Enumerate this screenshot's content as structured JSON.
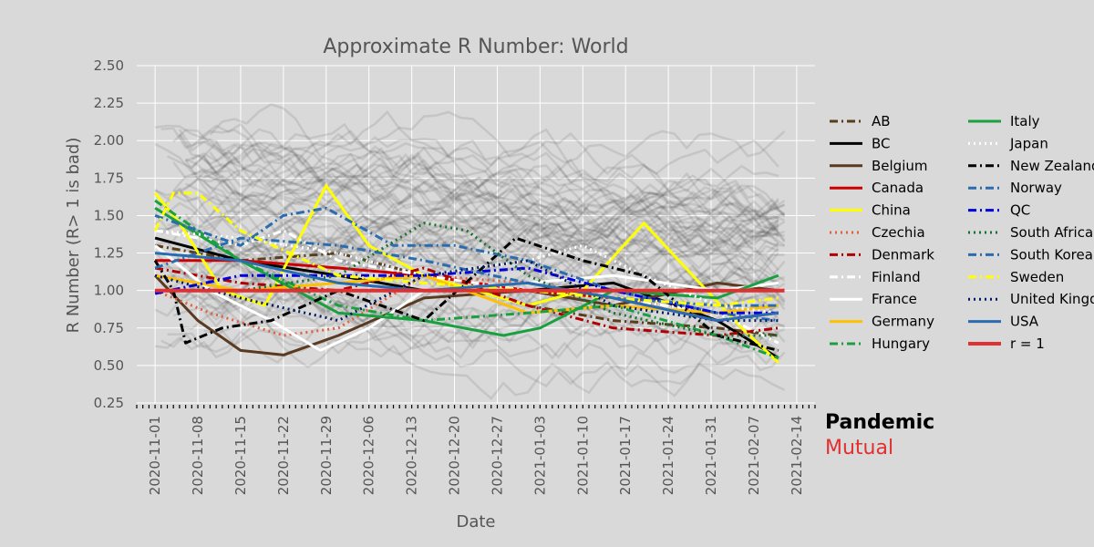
{
  "chart_data": {
    "type": "line",
    "title": "Approximate R Number: World",
    "xlabel": "Date",
    "ylabel": "R Number (R> 1 is bad)",
    "ylim": [
      0.25,
      2.5
    ],
    "xlim": [
      "2020-10-29",
      "2021-02-17"
    ],
    "yticks": [
      "0.25",
      "0.50",
      "0.75",
      "1.00",
      "1.25",
      "1.50",
      "1.75",
      "2.00",
      "2.25",
      "2.50"
    ],
    "xticks": [
      "2020-11-01",
      "2020-11-08",
      "2020-11-15",
      "2020-11-22",
      "2020-11-29",
      "2020-12-06",
      "2020-12-13",
      "2020-12-20",
      "2020-12-27",
      "2021-01-03",
      "2021-01-10",
      "2021-01-17",
      "2021-01-24",
      "2021-01-31",
      "2021-02-07",
      "2021-02-14"
    ],
    "grid": true,
    "legend_position": "right",
    "background_series": "many unlabeled grey world-country lines",
    "series": [
      {
        "name": "AB",
        "color": "#5a3e1b",
        "dash": "dashdot",
        "x": [
          "2020-11-01",
          "2020-11-15",
          "2020-12-01",
          "2020-12-15",
          "2021-01-01",
          "2021-01-15",
          "2021-02-01",
          "2021-02-11"
        ],
        "values": [
          1.3,
          1.2,
          1.25,
          1.1,
          0.9,
          0.8,
          0.75,
          0.7
        ]
      },
      {
        "name": "BC",
        "color": "#000000",
        "dash": "solid",
        "x": [
          "2020-11-01",
          "2020-11-15",
          "2020-12-01",
          "2020-12-15",
          "2021-01-01",
          "2021-01-15",
          "2021-02-01",
          "2021-02-11"
        ],
        "values": [
          1.35,
          1.2,
          1.1,
          1.0,
          1.0,
          1.05,
          0.8,
          0.55
        ]
      },
      {
        "name": "Belgium",
        "color": "#5a3a20",
        "dash": "solid",
        "x": [
          "2020-11-01",
          "2020-11-08",
          "2020-11-15",
          "2020-11-22",
          "2020-12-01",
          "2020-12-15",
          "2021-01-01",
          "2021-01-15",
          "2021-02-01",
          "2021-02-11"
        ],
        "values": [
          1.1,
          0.8,
          0.6,
          0.57,
          0.7,
          0.95,
          1.0,
          0.9,
          1.05,
          1.0
        ]
      },
      {
        "name": "Canada",
        "color": "#cc0000",
        "dash": "solid",
        "x": [
          "2020-11-01",
          "2020-11-15",
          "2020-12-01",
          "2020-12-15",
          "2021-01-01",
          "2021-01-15",
          "2021-02-01",
          "2021-02-11"
        ],
        "values": [
          1.2,
          1.2,
          1.15,
          1.1,
          1.0,
          0.95,
          0.8,
          0.85
        ]
      },
      {
        "name": "China",
        "color": "#ffff00",
        "dash": "solid",
        "x": [
          "2020-11-01",
          "2020-11-05",
          "2020-11-12",
          "2020-11-19",
          "2020-11-29",
          "2020-12-06",
          "2020-12-15",
          "2021-01-01",
          "2021-01-10",
          "2021-01-20",
          "2021-01-28",
          "2021-02-05",
          "2021-02-11"
        ],
        "values": [
          1.65,
          1.45,
          1.0,
          0.9,
          1.7,
          1.3,
          1.1,
          0.9,
          1.0,
          1.45,
          1.1,
          0.75,
          0.52
        ]
      },
      {
        "name": "Czechia",
        "color": "#e06040",
        "dash": "dot",
        "x": [
          "2020-11-01",
          "2020-11-10",
          "2020-11-22",
          "2020-12-01",
          "2020-12-15",
          "2021-01-01",
          "2021-01-15",
          "2021-02-01",
          "2021-02-11"
        ],
        "values": [
          1.0,
          0.85,
          0.7,
          0.75,
          1.1,
          1.05,
          0.95,
          0.85,
          0.9
        ]
      },
      {
        "name": "Denmark",
        "color": "#b00000",
        "dash": "dashdot",
        "x": [
          "2020-11-01",
          "2020-11-15",
          "2020-12-01",
          "2020-12-15",
          "2021-01-01",
          "2021-01-15",
          "2021-02-01",
          "2021-02-11"
        ],
        "values": [
          1.15,
          1.05,
          1.0,
          1.15,
          0.9,
          0.75,
          0.7,
          0.75
        ]
      },
      {
        "name": "Finland",
        "color": "#ffffff",
        "dash": "dashdot",
        "x": [
          "2020-11-01",
          "2020-11-15",
          "2020-11-22",
          "2020-12-01",
          "2020-12-15",
          "2021-01-01",
          "2021-01-15",
          "2021-02-01",
          "2021-02-11"
        ],
        "values": [
          1.4,
          1.3,
          1.4,
          1.2,
          1.1,
          1.0,
          0.95,
          0.85,
          0.65
        ]
      },
      {
        "name": "France",
        "color": "#ffffff",
        "dash": "solid",
        "x": [
          "2020-11-01",
          "2020-11-10",
          "2020-11-20",
          "2020-11-28",
          "2020-12-06",
          "2020-12-15",
          "2021-01-01",
          "2021-01-15",
          "2021-02-01",
          "2021-02-11"
        ],
        "values": [
          1.3,
          1.0,
          0.8,
          0.6,
          0.75,
          1.0,
          1.05,
          1.1,
          1.0,
          1.05
        ]
      },
      {
        "name": "Germany",
        "color": "#ffc000",
        "dash": "solid",
        "x": [
          "2020-11-01",
          "2020-11-15",
          "2020-12-01",
          "2020-12-15",
          "2021-01-01",
          "2021-01-15",
          "2021-02-01",
          "2021-02-11"
        ],
        "values": [
          1.1,
          1.0,
          1.05,
          1.1,
          0.85,
          0.9,
          0.85,
          0.9
        ]
      },
      {
        "name": "Hungary",
        "color": "#1aa040",
        "dash": "dashdot",
        "x": [
          "2020-11-01",
          "2020-11-15",
          "2020-12-01",
          "2020-12-15",
          "2021-01-01",
          "2021-01-15",
          "2021-02-01",
          "2021-02-11"
        ],
        "values": [
          1.6,
          1.2,
          0.9,
          0.8,
          0.85,
          0.9,
          0.7,
          0.55
        ]
      },
      {
        "name": "Italy",
        "color": "#1aa040",
        "dash": "solid",
        "x": [
          "2020-11-01",
          "2020-11-15",
          "2020-12-01",
          "2020-12-15",
          "2020-12-28",
          "2021-01-03",
          "2021-01-15",
          "2021-02-01",
          "2021-02-11"
        ],
        "values": [
          1.55,
          1.2,
          0.85,
          0.8,
          0.7,
          0.75,
          1.0,
          0.95,
          1.1
        ]
      },
      {
        "name": "Japan",
        "color": "#ffffff",
        "dash": "dot",
        "x": [
          "2020-11-01",
          "2020-11-15",
          "2020-12-01",
          "2020-12-15",
          "2021-01-01",
          "2021-01-10",
          "2021-01-20",
          "2021-02-01",
          "2021-02-11"
        ],
        "values": [
          1.4,
          1.35,
          1.25,
          1.1,
          1.2,
          1.3,
          1.1,
          0.9,
          0.85
        ]
      },
      {
        "name": "New Zealand",
        "color": "#000000",
        "dash": "dashdot",
        "x": [
          "2020-11-01",
          "2020-11-04",
          "2020-11-06",
          "2020-11-12",
          "2020-11-20",
          "2020-12-01",
          "2020-12-15",
          "2020-12-30",
          "2021-01-10",
          "2021-01-20",
          "2021-02-01",
          "2021-02-11"
        ],
        "values": [
          1.2,
          1.0,
          0.65,
          0.75,
          0.8,
          1.0,
          0.8,
          1.35,
          1.2,
          1.1,
          0.7,
          0.6
        ]
      },
      {
        "name": "Norway",
        "color": "#2a6cb0",
        "dash": "dashdot",
        "x": [
          "2020-11-01",
          "2020-11-15",
          "2020-11-22",
          "2020-11-29",
          "2020-12-10",
          "2020-12-20",
          "2021-01-01",
          "2021-01-15",
          "2021-02-01",
          "2021-02-11"
        ],
        "values": [
          1.5,
          1.3,
          1.5,
          1.55,
          1.3,
          1.3,
          1.2,
          1.0,
          0.85,
          0.8
        ]
      },
      {
        "name": "QC",
        "color": "#0000dd",
        "dash": "dashdot",
        "x": [
          "2020-11-01",
          "2020-11-15",
          "2020-12-01",
          "2020-12-15",
          "2021-01-01",
          "2021-01-15",
          "2021-02-01",
          "2021-02-11"
        ],
        "values": [
          0.98,
          1.1,
          1.1,
          1.1,
          1.15,
          1.0,
          0.85,
          0.85
        ]
      },
      {
        "name": "South Africa",
        "color": "#1a7030",
        "dash": "dot",
        "x": [
          "2020-11-01",
          "2020-11-15",
          "2020-12-01",
          "2020-12-15",
          "2020-12-22",
          "2021-01-01",
          "2021-01-15",
          "2021-02-01",
          "2021-02-11"
        ],
        "values": [
          1.0,
          1.0,
          1.1,
          1.45,
          1.4,
          1.1,
          0.85,
          0.7,
          0.7
        ]
      },
      {
        "name": "South Korea",
        "color": "#2a6cb0",
        "dash": "dashdot",
        "x": [
          "2020-11-01",
          "2020-11-15",
          "2020-12-01",
          "2020-12-15",
          "2021-01-01",
          "2021-01-15",
          "2021-02-01",
          "2021-02-11"
        ],
        "values": [
          1.15,
          1.35,
          1.3,
          1.2,
          1.05,
          0.95,
          0.9,
          0.9
        ]
      },
      {
        "name": "Sweden",
        "color": "#ffff00",
        "dash": "dashdot",
        "x": [
          "2020-11-01",
          "2020-11-04",
          "2020-11-08",
          "2020-11-15",
          "2020-12-01",
          "2020-12-15",
          "2021-01-01",
          "2021-01-15",
          "2021-02-01",
          "2021-02-11"
        ],
        "values": [
          1.4,
          1.65,
          1.65,
          1.4,
          1.1,
          1.05,
          1.0,
          0.95,
          0.9,
          0.95
        ]
      },
      {
        "name": "United Kingdom",
        "color": "#001a66",
        "dash": "dot",
        "x": [
          "2020-11-01",
          "2020-11-15",
          "2020-12-01",
          "2020-12-15",
          "2021-01-01",
          "2021-01-15",
          "2021-02-01",
          "2021-02-11"
        ],
        "values": [
          1.1,
          0.95,
          0.8,
          1.1,
          1.2,
          0.9,
          0.8,
          0.8
        ]
      },
      {
        "name": "USA",
        "color": "#2a6cb0",
        "dash": "solid",
        "x": [
          "2020-11-01",
          "2020-11-15",
          "2020-12-01",
          "2020-12-15",
          "2021-01-01",
          "2021-01-15",
          "2021-02-01",
          "2021-02-11"
        ],
        "values": [
          1.25,
          1.2,
          1.05,
          1.0,
          1.05,
          0.95,
          0.8,
          0.85
        ]
      },
      {
        "name": "r = 1",
        "color": "#e03030",
        "dash": "solid",
        "x": [
          "2020-11-01",
          "2021-02-12"
        ],
        "values": [
          1.0,
          1.0
        ]
      }
    ]
  },
  "branding": {
    "line1": "Pandemic",
    "line2": "Mutual"
  }
}
